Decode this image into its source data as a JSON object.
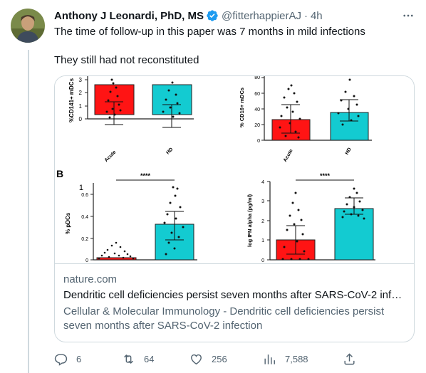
{
  "author": {
    "display_name": "Anthony J Leonardi, PhD, MS",
    "handle": "@fitterhappierAJ",
    "separator": "·",
    "time": "4h"
  },
  "tweet": {
    "line1": "The time of follow-up in this paper was 7 months in mild infections",
    "line2": "They still had not reconstituted"
  },
  "figure": {
    "colors": {
      "acute": "#ff1414",
      "hd": "#13cbd1"
    },
    "panel_top_left": {
      "ylabel": "%CD141+ mDCs",
      "ticks": [
        "3",
        "2",
        "1",
        "0"
      ],
      "categories": [
        "Acute",
        "HD"
      ]
    },
    "panel_top_right": {
      "ylabel": "% CD16+ mDCs",
      "ticks": [
        "80",
        "60",
        "40",
        "20",
        "0"
      ],
      "categories": [
        "Acute",
        "HD"
      ]
    },
    "panel_b": {
      "letter": "B",
      "ylabel": "% pDCs",
      "ticks": [
        "1",
        "0.6",
        "0.4",
        "0.2",
        "0"
      ],
      "sig": "****"
    },
    "panel_ifn": {
      "ylabel": "log IFN alpha (pg/ml)",
      "ticks": [
        "4",
        "3",
        "2",
        "1",
        "0"
      ],
      "sig": "****"
    }
  },
  "card": {
    "domain": "nature.com",
    "title": "Dendritic cell deficiencies persist seven months after SARS-CoV-2 infec...",
    "description": "Cellular & Molecular Immunology - Dendritic cell deficiencies persist seven months after SARS-CoV-2 infection"
  },
  "actions": {
    "replies": "6",
    "retweets": "64",
    "likes": "256",
    "views": "7,588"
  }
}
